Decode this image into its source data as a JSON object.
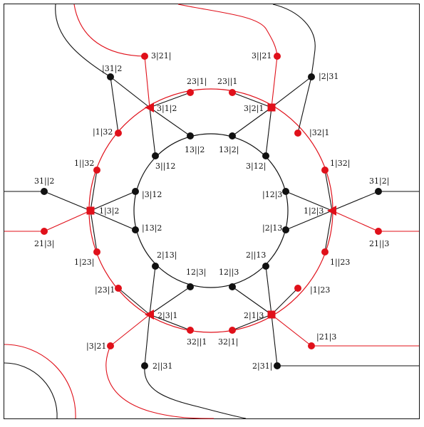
{
  "colors": {
    "red": "#e0101a",
    "black": "#111111"
  },
  "nodes": [
    {
      "id": "o1",
      "label": "3|21|",
      "color": "red",
      "shape": "dot"
    },
    {
      "id": "o2",
      "label": "3||21",
      "color": "red",
      "shape": "dot"
    },
    {
      "id": "o3",
      "label": "|31|2",
      "color": "black",
      "shape": "dot"
    },
    {
      "id": "o4",
      "label": "|2|31",
      "color": "black",
      "shape": "dot"
    },
    {
      "id": "o5",
      "label": "31||2",
      "color": "black",
      "shape": "dot"
    },
    {
      "id": "o6",
      "label": "21|3|",
      "color": "red",
      "shape": "dot"
    },
    {
      "id": "o7",
      "label": "31|2|",
      "color": "black",
      "shape": "dot"
    },
    {
      "id": "o8",
      "label": "21||3",
      "color": "red",
      "shape": "dot"
    },
    {
      "id": "o9",
      "label": "|3|21",
      "color": "red",
      "shape": "dot"
    },
    {
      "id": "o10",
      "label": "|21|3",
      "color": "red",
      "shape": "dot"
    },
    {
      "id": "o11",
      "label": "2||31",
      "color": "black",
      "shape": "dot"
    },
    {
      "id": "o12",
      "label": "2|31|",
      "color": "black",
      "shape": "dot"
    },
    {
      "id": "m1",
      "label": "23|1|",
      "color": "red",
      "shape": "dot"
    },
    {
      "id": "m2",
      "label": "23||1",
      "color": "red",
      "shape": "dot"
    },
    {
      "id": "m3",
      "label": "3|1|2",
      "color": "red",
      "shape": "triangle-left"
    },
    {
      "id": "m4",
      "label": "3|2|1",
      "color": "red",
      "shape": "square"
    },
    {
      "id": "m5",
      "label": "|1|32",
      "color": "red",
      "shape": "dot"
    },
    {
      "id": "m6",
      "label": "|32|1",
      "color": "red",
      "shape": "dot"
    },
    {
      "id": "m7",
      "label": "1||32",
      "color": "red",
      "shape": "dot"
    },
    {
      "id": "m8",
      "label": "1|32|",
      "color": "red",
      "shape": "dot"
    },
    {
      "id": "m9",
      "label": "1|3|2",
      "color": "red",
      "shape": "square"
    },
    {
      "id": "m10",
      "label": "1|2|3",
      "color": "red",
      "shape": "triangle-left"
    },
    {
      "id": "m11",
      "label": "1|23|",
      "color": "red",
      "shape": "dot"
    },
    {
      "id": "m12",
      "label": "1||23",
      "color": "red",
      "shape": "dot"
    },
    {
      "id": "m13",
      "label": "|23|1",
      "color": "red",
      "shape": "dot"
    },
    {
      "id": "m14",
      "label": "|1|23",
      "color": "red",
      "shape": "dot"
    },
    {
      "id": "m15",
      "label": "2|3|1",
      "color": "red",
      "shape": "triangle-left"
    },
    {
      "id": "m16",
      "label": "2|1|3",
      "color": "red",
      "shape": "square"
    },
    {
      "id": "m17",
      "label": "32||1",
      "color": "red",
      "shape": "dot"
    },
    {
      "id": "m18",
      "label": "32|1|",
      "color": "red",
      "shape": "dot"
    },
    {
      "id": "i1",
      "label": "13||2",
      "color": "black",
      "shape": "dot"
    },
    {
      "id": "i2",
      "label": "13|2|",
      "color": "black",
      "shape": "dot"
    },
    {
      "id": "i3",
      "label": "3||12",
      "color": "black",
      "shape": "dot"
    },
    {
      "id": "i4",
      "label": "3|12|",
      "color": "black",
      "shape": "dot"
    },
    {
      "id": "i5",
      "label": "|3|12",
      "color": "black",
      "shape": "dot"
    },
    {
      "id": "i6",
      "label": "|12|3",
      "color": "black",
      "shape": "dot"
    },
    {
      "id": "i7",
      "label": "|13|2",
      "color": "black",
      "shape": "dot"
    },
    {
      "id": "i8",
      "label": "|2|13",
      "color": "black",
      "shape": "dot"
    },
    {
      "id": "i9",
      "label": "2|13|",
      "color": "black",
      "shape": "dot"
    },
    {
      "id": "i10",
      "label": "2||13",
      "color": "black",
      "shape": "dot"
    },
    {
      "id": "i11",
      "label": "12|3|",
      "color": "black",
      "shape": "dot"
    },
    {
      "id": "i12",
      "label": "12||3",
      "color": "black",
      "shape": "dot"
    }
  ],
  "edges": [
    [
      "o1",
      "m3",
      "red"
    ],
    [
      "o2",
      "m4",
      "red"
    ],
    [
      "o3",
      "m3",
      "black"
    ],
    [
      "o3",
      "m5",
      "black"
    ],
    [
      "o4",
      "m4",
      "black"
    ],
    [
      "o4",
      "m6",
      "black"
    ],
    [
      "m1",
      "m3",
      "black"
    ],
    [
      "m2",
      "m4",
      "black"
    ],
    [
      "i1",
      "m3",
      "black"
    ],
    [
      "i3",
      "m3",
      "black"
    ],
    [
      "i2",
      "m4",
      "black"
    ],
    [
      "i4",
      "m4",
      "black"
    ],
    [
      "o5",
      "m9",
      "black"
    ],
    [
      "o6",
      "m9",
      "red"
    ],
    [
      "m7",
      "m9",
      "black"
    ],
    [
      "m11",
      "m9",
      "black"
    ],
    [
      "i5",
      "m9",
      "black"
    ],
    [
      "i7",
      "m9",
      "black"
    ],
    [
      "o7",
      "m10",
      "black"
    ],
    [
      "o8",
      "m10",
      "red"
    ],
    [
      "m8",
      "m10",
      "black"
    ],
    [
      "m12",
      "m10",
      "black"
    ],
    [
      "i6",
      "m10",
      "black"
    ],
    [
      "i8",
      "m10",
      "black"
    ],
    [
      "o9",
      "m15",
      "red"
    ],
    [
      "o11",
      "m15",
      "black"
    ],
    [
      "m13",
      "m15",
      "black"
    ],
    [
      "m17",
      "m15",
      "black"
    ],
    [
      "i9",
      "m15",
      "black"
    ],
    [
      "i11",
      "m15",
      "black"
    ],
    [
      "o10",
      "m16",
      "red"
    ],
    [
      "o12",
      "m16",
      "black"
    ],
    [
      "m14",
      "m16",
      "black"
    ],
    [
      "m18",
      "m16",
      "black"
    ],
    [
      "i10",
      "m16",
      "black"
    ],
    [
      "i12",
      "m16",
      "black"
    ]
  ]
}
